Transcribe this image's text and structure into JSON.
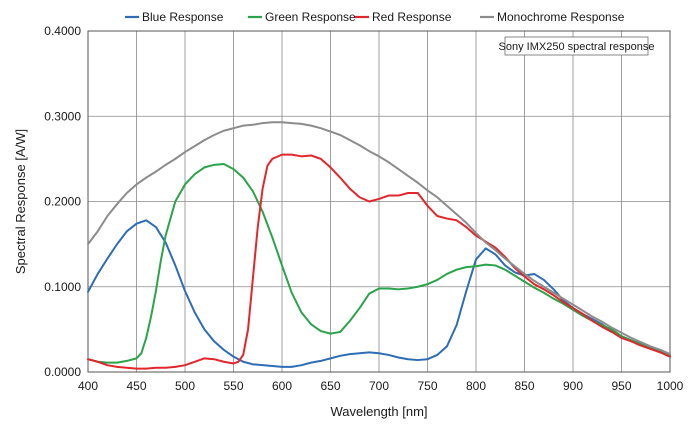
{
  "chart_data": {
    "type": "line",
    "title": "",
    "xlabel": "Wavelength [nm]",
    "ylabel": "Spectral Response [A/W]",
    "xlim": [
      400,
      1000
    ],
    "ylim": [
      0,
      0.4
    ],
    "x_ticks": [
      400,
      450,
      500,
      550,
      600,
      650,
      700,
      750,
      800,
      850,
      900,
      950,
      1000
    ],
    "x_tick_labels": [
      "400",
      "450",
      "500",
      "550",
      "600",
      "650",
      "700",
      "750",
      "800",
      "850",
      "900",
      "950",
      "1000"
    ],
    "y_ticks": [
      0,
      0.1,
      0.2,
      0.3,
      0.4
    ],
    "y_tick_labels": [
      "0.0000",
      "0.1000",
      "0.2000",
      "0.3000",
      "0.4000"
    ],
    "grid": true,
    "legend_position": "top",
    "annotation": "Sony IMX250 spectral response",
    "series": [
      {
        "name": "Blue Response",
        "color": "#2e6db5",
        "x": [
          400,
          410,
          420,
          430,
          440,
          450,
          460,
          470,
          480,
          490,
          500,
          510,
          520,
          530,
          540,
          550,
          560,
          570,
          580,
          590,
          600,
          610,
          620,
          630,
          640,
          650,
          660,
          670,
          680,
          690,
          700,
          710,
          720,
          730,
          740,
          750,
          760,
          770,
          780,
          790,
          800,
          810,
          820,
          830,
          840,
          850,
          860,
          870,
          880,
          890,
          900,
          910,
          920,
          930,
          940,
          950,
          960,
          970,
          980,
          990,
          1000
        ],
        "y": [
          0.094,
          0.115,
          0.133,
          0.15,
          0.165,
          0.174,
          0.178,
          0.17,
          0.152,
          0.125,
          0.095,
          0.07,
          0.05,
          0.036,
          0.026,
          0.018,
          0.012,
          0.009,
          0.008,
          0.007,
          0.006,
          0.006,
          0.008,
          0.011,
          0.013,
          0.016,
          0.019,
          0.021,
          0.022,
          0.023,
          0.022,
          0.02,
          0.017,
          0.015,
          0.014,
          0.015,
          0.02,
          0.03,
          0.055,
          0.095,
          0.132,
          0.145,
          0.138,
          0.125,
          0.117,
          0.113,
          0.115,
          0.108,
          0.097,
          0.084,
          0.075,
          0.068,
          0.062,
          0.056,
          0.048,
          0.042,
          0.037,
          0.033,
          0.028,
          0.023,
          0.02
        ]
      },
      {
        "name": "Green Response",
        "color": "#2aa34a",
        "x": [
          400,
          410,
          420,
          430,
          440,
          450,
          455,
          460,
          465,
          470,
          475,
          480,
          490,
          500,
          510,
          520,
          530,
          540,
          550,
          560,
          570,
          580,
          590,
          600,
          610,
          620,
          630,
          640,
          650,
          660,
          670,
          680,
          690,
          700,
          710,
          720,
          730,
          740,
          750,
          760,
          770,
          780,
          790,
          800,
          810,
          820,
          830,
          840,
          850,
          860,
          870,
          880,
          890,
          900,
          910,
          920,
          930,
          940,
          950,
          960,
          970,
          980,
          990,
          1000
        ],
        "y": [
          0.015,
          0.012,
          0.011,
          0.011,
          0.013,
          0.016,
          0.022,
          0.04,
          0.065,
          0.095,
          0.13,
          0.16,
          0.2,
          0.22,
          0.232,
          0.24,
          0.243,
          0.244,
          0.238,
          0.228,
          0.212,
          0.188,
          0.158,
          0.125,
          0.093,
          0.07,
          0.056,
          0.048,
          0.045,
          0.047,
          0.06,
          0.075,
          0.092,
          0.098,
          0.098,
          0.097,
          0.098,
          0.1,
          0.103,
          0.108,
          0.115,
          0.12,
          0.123,
          0.124,
          0.126,
          0.125,
          0.12,
          0.113,
          0.106,
          0.099,
          0.093,
          0.086,
          0.08,
          0.073,
          0.066,
          0.06,
          0.055,
          0.05,
          0.042,
          0.037,
          0.033,
          0.029,
          0.025,
          0.02
        ]
      },
      {
        "name": "Red Response",
        "color": "#e2262c",
        "x": [
          400,
          410,
          420,
          430,
          440,
          450,
          460,
          470,
          480,
          490,
          500,
          510,
          520,
          530,
          540,
          550,
          555,
          560,
          565,
          570,
          575,
          580,
          585,
          590,
          600,
          610,
          620,
          630,
          640,
          650,
          660,
          670,
          680,
          690,
          700,
          710,
          720,
          730,
          740,
          750,
          760,
          770,
          780,
          790,
          800,
          810,
          820,
          830,
          840,
          850,
          860,
          870,
          880,
          890,
          900,
          910,
          920,
          930,
          940,
          950,
          960,
          970,
          980,
          990,
          1000
        ],
        "y": [
          0.015,
          0.012,
          0.008,
          0.006,
          0.005,
          0.004,
          0.004,
          0.005,
          0.005,
          0.006,
          0.008,
          0.012,
          0.016,
          0.015,
          0.012,
          0.01,
          0.012,
          0.02,
          0.05,
          0.11,
          0.17,
          0.215,
          0.242,
          0.25,
          0.255,
          0.255,
          0.253,
          0.254,
          0.25,
          0.24,
          0.228,
          0.215,
          0.205,
          0.2,
          0.203,
          0.207,
          0.207,
          0.21,
          0.21,
          0.195,
          0.183,
          0.18,
          0.178,
          0.17,
          0.16,
          0.153,
          0.146,
          0.135,
          0.122,
          0.112,
          0.103,
          0.097,
          0.09,
          0.082,
          0.075,
          0.068,
          0.06,
          0.053,
          0.047,
          0.04,
          0.036,
          0.031,
          0.027,
          0.023,
          0.018
        ]
      },
      {
        "name": "Monochrome Response",
        "color": "#8c8c8c",
        "x": [
          400,
          410,
          420,
          430,
          440,
          450,
          460,
          470,
          480,
          490,
          500,
          510,
          520,
          530,
          540,
          550,
          560,
          570,
          580,
          590,
          600,
          610,
          620,
          630,
          640,
          650,
          660,
          670,
          680,
          690,
          700,
          710,
          720,
          730,
          740,
          750,
          760,
          770,
          780,
          790,
          800,
          810,
          820,
          830,
          840,
          850,
          860,
          870,
          880,
          890,
          900,
          910,
          920,
          930,
          940,
          950,
          960,
          970,
          980,
          990,
          1000
        ],
        "y": [
          0.15,
          0.165,
          0.183,
          0.197,
          0.21,
          0.22,
          0.228,
          0.235,
          0.243,
          0.25,
          0.258,
          0.265,
          0.272,
          0.278,
          0.283,
          0.286,
          0.289,
          0.29,
          0.292,
          0.293,
          0.293,
          0.292,
          0.291,
          0.289,
          0.286,
          0.282,
          0.278,
          0.272,
          0.266,
          0.259,
          0.253,
          0.246,
          0.238,
          0.23,
          0.222,
          0.213,
          0.205,
          0.195,
          0.185,
          0.175,
          0.163,
          0.152,
          0.143,
          0.133,
          0.124,
          0.115,
          0.107,
          0.1,
          0.093,
          0.086,
          0.079,
          0.072,
          0.065,
          0.059,
          0.052,
          0.046,
          0.04,
          0.035,
          0.03,
          0.026,
          0.021
        ]
      }
    ]
  }
}
